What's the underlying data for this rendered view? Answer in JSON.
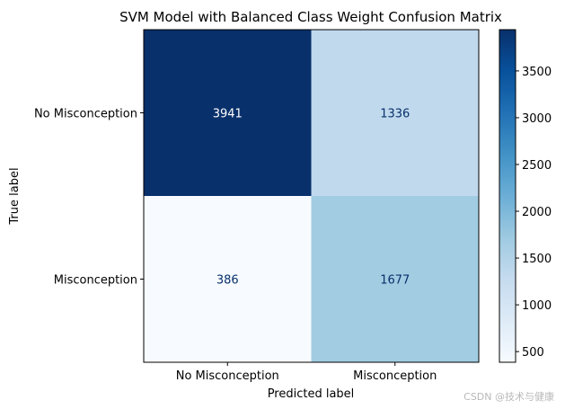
{
  "chart_data": {
    "type": "heatmap",
    "title": "SVM Model with Balanced Class Weight Confusion Matrix",
    "xlabel": "Predicted label",
    "ylabel": "True label",
    "x_categories": [
      "No Misconception",
      "Misconception"
    ],
    "y_categories": [
      "No Misconception",
      "Misconception"
    ],
    "values": [
      [
        3941,
        1336
      ],
      [
        386,
        1677
      ]
    ],
    "colormap": "Blues",
    "colorbar": {
      "ticks": [
        500,
        1000,
        1500,
        2000,
        2500,
        3000,
        3500
      ],
      "range": [
        386,
        3941
      ]
    },
    "text_colors": {
      "dark": "#ffffff",
      "light": "#08306b"
    }
  },
  "watermark": "CSDN @技术与健康"
}
